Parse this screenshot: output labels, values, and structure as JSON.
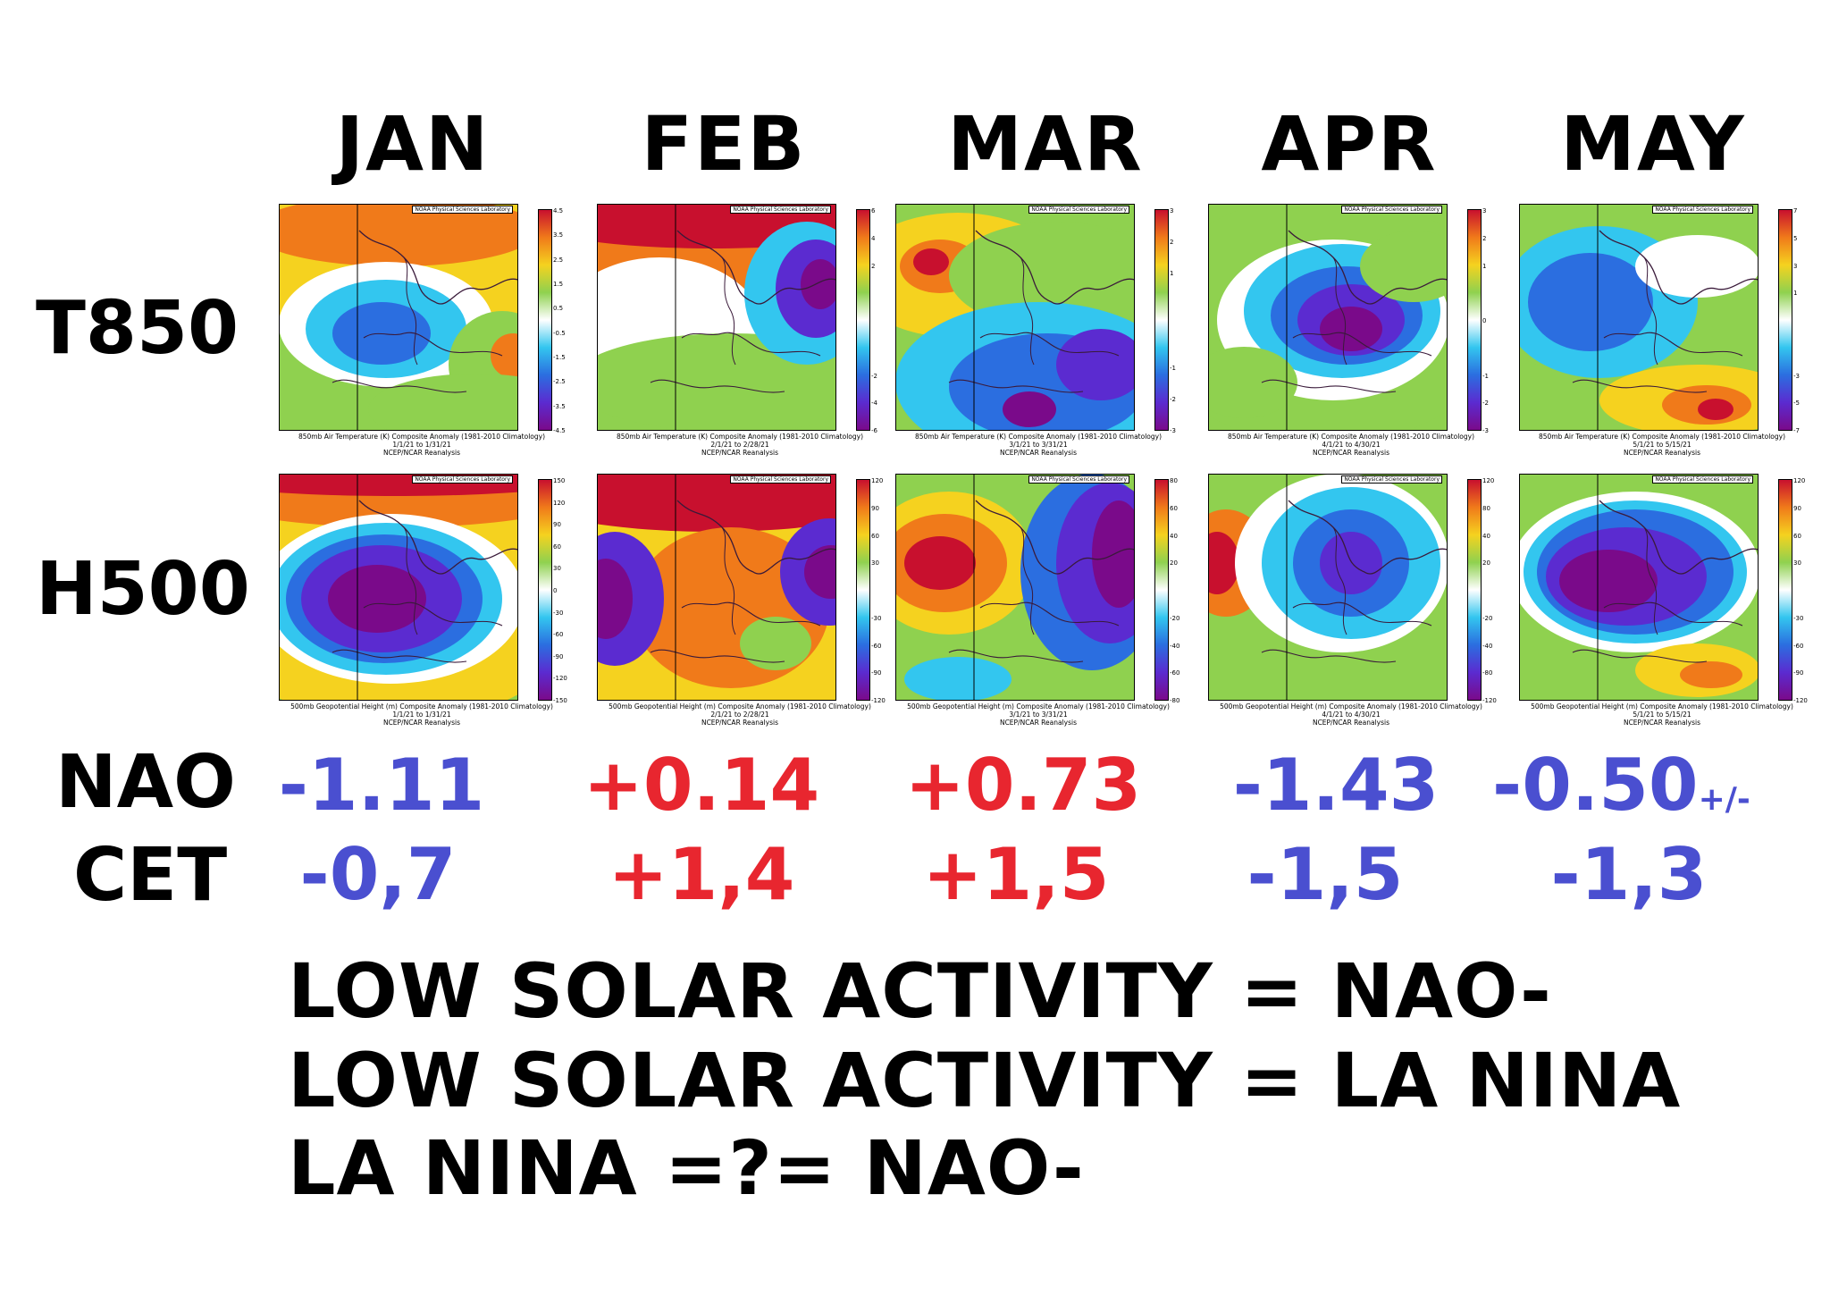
{
  "months": [
    "JAN",
    "FEB",
    "MAR",
    "APR",
    "MAY"
  ],
  "row_labels": {
    "t850": "T850",
    "h500": "H500",
    "nao": "NAO",
    "cet": "CET"
  },
  "nao_values": [
    {
      "text": "-1.11",
      "color": "#4a4fd0"
    },
    {
      "text": "+0.14",
      "color": "#e8262f"
    },
    {
      "text": "+0.73",
      "color": "#e8262f"
    },
    {
      "text": "-1.43",
      "color": "#4a4fd0"
    },
    {
      "text": "-0.50",
      "color": "#4a4fd0"
    }
  ],
  "nao_suffix": "+/-",
  "cet_values": [
    {
      "text": "-0,7",
      "color": "#4a4fd0"
    },
    {
      "text": "+1,4",
      "color": "#e8262f"
    },
    {
      "text": "+1,5",
      "color": "#e8262f"
    },
    {
      "text": "-1,5",
      "color": "#4a4fd0"
    },
    {
      "text": "-1,3",
      "color": "#4a4fd0"
    }
  ],
  "statements": [
    "LOW SOLAR ACTIVITY = NAO-",
    "LOW SOLAR ACTIVITY = LA NINA",
    "LA NINA =?= NAO-"
  ],
  "watermark": "NOAA Physical Sciences Laboratory",
  "source": "NCEP/NCAR Reanalysis",
  "t850_title": "850mb Air Temperature (K) Composite Anomaly (1981-2010 Climatology)",
  "h500_title": "500mb Geopotential Height (m) Composite Anomaly (1981-2010 Climatology)",
  "date_ranges": [
    "1/1/21  to 1/31/21",
    "2/1/21  to 2/28/21",
    "3/1/21  to 3/31/21",
    "4/1/21  to 4/30/21",
    "5/1/21  to 5/15/21"
  ],
  "t850_scales": [
    [
      "4.5",
      "3.5",
      "2.5",
      "1.5",
      "0.5",
      "-0.5",
      "-1.5",
      "-2.5",
      "-3.5",
      "-4.5"
    ],
    [
      "6",
      "4",
      "2",
      "",
      "",
      "",
      "-2",
      "-4",
      "-6"
    ],
    [
      "3",
      "2",
      "1",
      "",
      "",
      "-1",
      "-2",
      "-3"
    ],
    [
      "3",
      "2",
      "1",
      "",
      "0",
      "",
      "-1",
      "-2",
      "-3"
    ],
    [
      "7",
      "5",
      "3",
      "1",
      "",
      "",
      "-3",
      "-5",
      "-7"
    ]
  ],
  "h500_scales": [
    [
      "150",
      "120",
      "90",
      "60",
      "30",
      "0",
      "-30",
      "-60",
      "-90",
      "-120",
      "-150"
    ],
    [
      "120",
      "90",
      "60",
      "30",
      "",
      "-30",
      "-60",
      "-90",
      "-120"
    ],
    [
      "80",
      "60",
      "40",
      "20",
      "",
      "-20",
      "-40",
      "-60",
      "-80"
    ],
    [
      "120",
      "80",
      "40",
      "20",
      "",
      "-20",
      "-40",
      "-80",
      "-120"
    ],
    [
      "120",
      "90",
      "60",
      "30",
      "",
      "-30",
      "-60",
      "-90",
      "-120"
    ]
  ],
  "anomaly_colors": {
    "strong_pos": "#c8102e",
    "pos": "#f07a1a",
    "weak_pos": "#f5d21f",
    "slight_pos": "#8fd14f",
    "neutral": "#ffffff",
    "slight_neg": "#33c6ef",
    "weak_neg": "#2b6ee0",
    "neg": "#5b2bd0",
    "strong_neg": "#7a0a8a"
  }
}
